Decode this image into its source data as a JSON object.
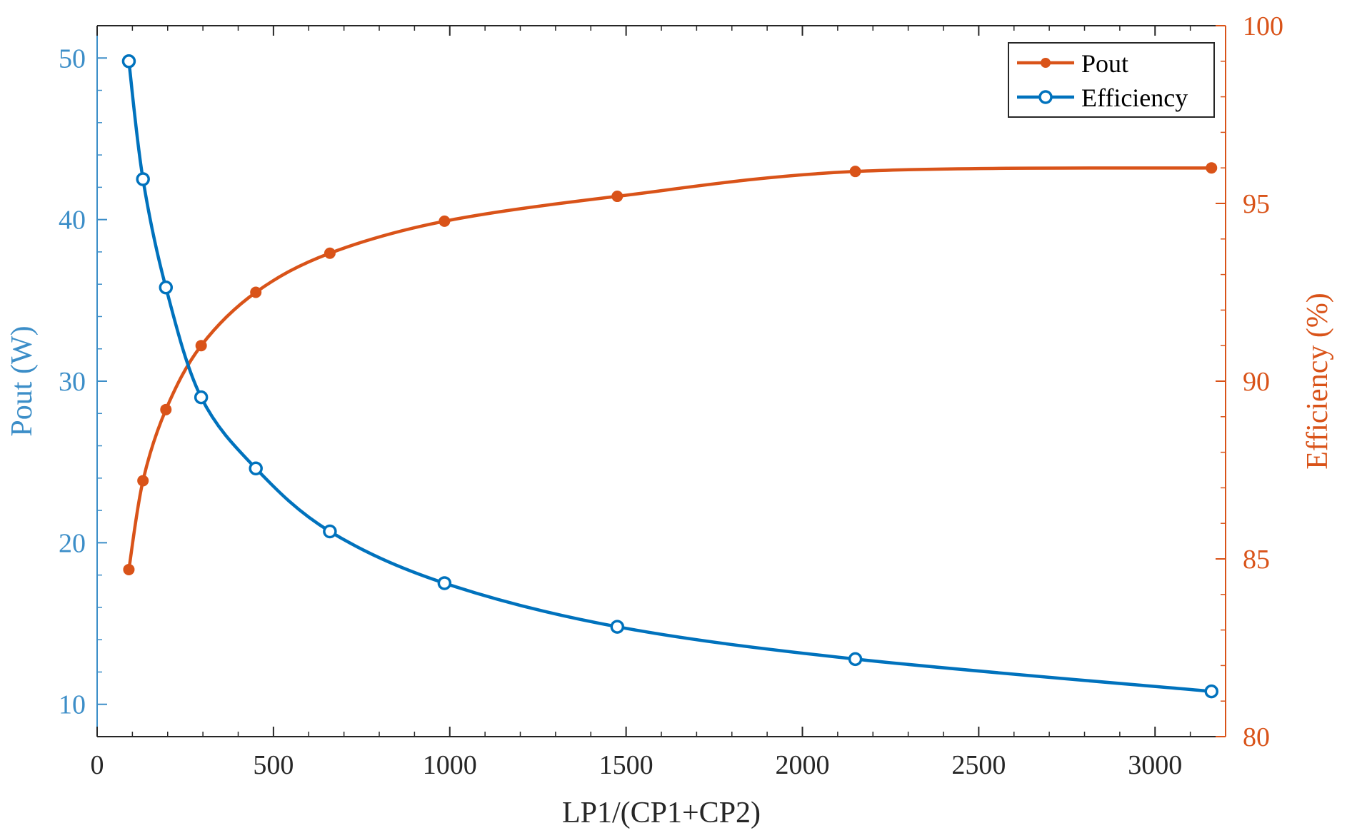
{
  "chart_data": {
    "type": "line",
    "title": "",
    "xlabel": "LP1/(CP1+CP2)",
    "ylabel_left": "Pout (W)",
    "ylabel_right": "Efficiency (%)",
    "xlim": [
      0,
      3200
    ],
    "ylim_left": [
      8,
      52
    ],
    "ylim_right": [
      80,
      100
    ],
    "x_ticks": [
      0,
      500,
      1000,
      1500,
      2000,
      2500,
      3000
    ],
    "x_tick_labels": [
      "0",
      "500",
      "1000",
      "1500",
      "2000",
      "2500",
      "3000"
    ],
    "y_left_ticks": [
      10,
      20,
      30,
      40,
      50
    ],
    "y_left_tick_labels": [
      "10",
      "20",
      "30",
      "40",
      "50"
    ],
    "y_right_ticks": [
      80,
      85,
      90,
      95,
      100
    ],
    "y_right_tick_labels": [
      "80",
      "85",
      "90",
      "95",
      "100"
    ],
    "grid": false,
    "legend_position": "top-right",
    "series": [
      {
        "name": "Pout",
        "axis": "right",
        "color": "#d95319",
        "marker": "filled-circle",
        "x": [
          90,
          130,
          195,
          295,
          450,
          660,
          985,
          1475,
          2150,
          3160
        ],
        "values": [
          84.7,
          87.2,
          89.2,
          91.0,
          92.5,
          93.6,
          94.5,
          95.2,
          95.9,
          96.0
        ]
      },
      {
        "name": "Efficiency",
        "axis": "left",
        "color": "#0072bd",
        "marker": "open-circle",
        "x": [
          90,
          130,
          195,
          295,
          450,
          660,
          985,
          1475,
          2150,
          3160
        ],
        "values": [
          49.8,
          42.5,
          35.8,
          29.0,
          24.6,
          20.7,
          17.5,
          14.8,
          12.8,
          10.8
        ]
      }
    ]
  },
  "colors": {
    "left_axis": "#3c8ec8",
    "right_axis": "#d95319",
    "frame": "#262626"
  }
}
